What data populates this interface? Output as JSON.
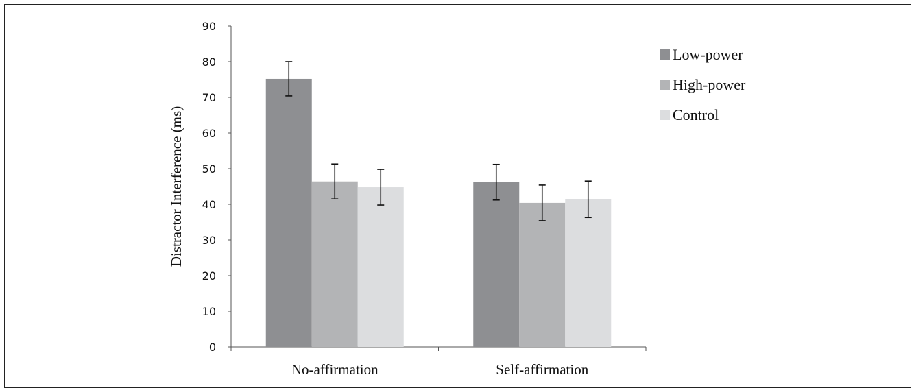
{
  "chart_data": {
    "type": "bar",
    "title": "",
    "xlabel": "",
    "ylabel": "Distractor Interference (ms)",
    "ylim": [
      0,
      90
    ],
    "yticks": [
      0,
      10,
      20,
      30,
      40,
      50,
      60,
      70,
      80,
      90
    ],
    "grid": false,
    "legend_position": "top-right",
    "categories": [
      "No-affirmation",
      "Self-affirmation"
    ],
    "series": [
      {
        "name": "Low-power",
        "color": "#8e8f92",
        "values": [
          75.2,
          46.2
        ],
        "error": [
          4.8,
          5.0
        ]
      },
      {
        "name": "High-power",
        "color": "#b3b4b6",
        "values": [
          46.4,
          40.4
        ],
        "error": [
          4.9,
          5.0
        ]
      },
      {
        "name": "Control",
        "color": "#dcdddf",
        "values": [
          44.8,
          41.4
        ],
        "error": [
          5.0,
          5.1
        ]
      }
    ]
  }
}
